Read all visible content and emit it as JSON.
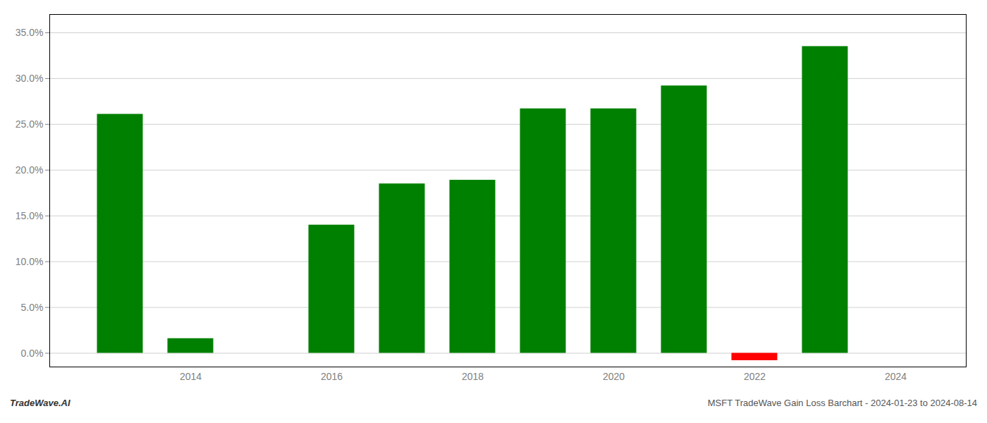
{
  "chart_data": {
    "type": "bar",
    "x": [
      2013,
      2014,
      2015,
      2016,
      2017,
      2018,
      2019,
      2020,
      2021,
      2022,
      2023
    ],
    "values": [
      0.261,
      0.016,
      0.0,
      0.14,
      0.185,
      0.189,
      0.267,
      0.267,
      0.292,
      -0.008,
      0.335
    ],
    "colors": [
      "#008000",
      "#008000",
      "#008000",
      "#008000",
      "#008000",
      "#008000",
      "#008000",
      "#008000",
      "#008000",
      "#ff0000",
      "#008000"
    ],
    "xlim": [
      2012,
      2025
    ],
    "xticks": [
      2014,
      2016,
      2018,
      2020,
      2022,
      2024
    ],
    "ylim": [
      -0.015,
      0.37
    ],
    "yticks": [
      {
        "value": 0.0,
        "label": "0.0%"
      },
      {
        "value": 0.05,
        "label": "5.0%"
      },
      {
        "value": 0.1,
        "label": "10.0%"
      },
      {
        "value": 0.15,
        "label": "15.0%"
      },
      {
        "value": 0.2,
        "label": "20.0%"
      },
      {
        "value": 0.25,
        "label": "25.0%"
      },
      {
        "value": 0.3,
        "label": "30.0%"
      },
      {
        "value": 0.35,
        "label": "35.0%"
      }
    ],
    "grid": "y",
    "annotations": [
      "TradeWave.AI",
      "MSFT TradeWave Gain Loss Barchart - 2024-01-23 to 2024-08-14"
    ]
  }
}
